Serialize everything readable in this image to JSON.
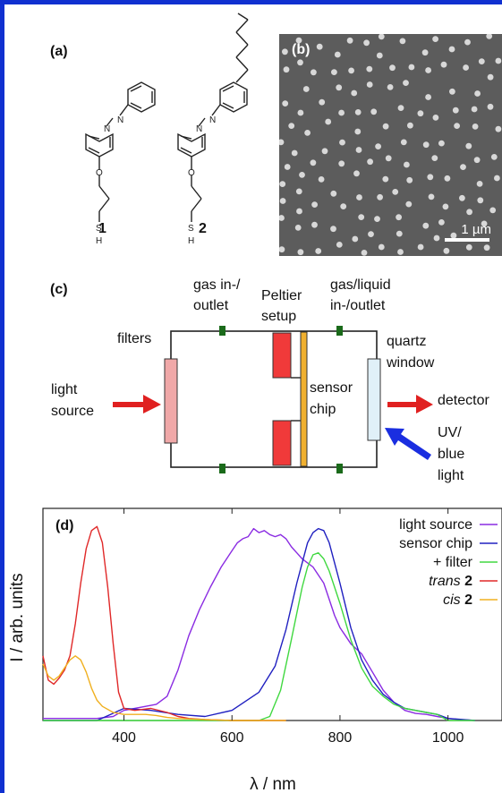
{
  "panel_a": {
    "letter": "(a)",
    "molecules": [
      {
        "number": "1",
        "atoms": {
          "azo_left": "N",
          "azo_right": "N",
          "oxygen": "O",
          "sulfur": "S",
          "hydrogen": "H"
        }
      },
      {
        "number": "2",
        "atoms": {
          "azo_left": "N",
          "azo_right": "N",
          "oxygen": "O",
          "sulfur": "S",
          "hydrogen": "H"
        }
      }
    ]
  },
  "panel_b": {
    "letter": "(b)",
    "scale_label": "1 µm"
  },
  "panel_c": {
    "letter": "(c)",
    "gas_inlet_line1": "gas in-/",
    "gas_inlet_line2": "outlet",
    "peltier_line1": "Peltier",
    "peltier_line2": "setup",
    "gas_liquid_line1": "gas/liquid",
    "gas_liquid_line2": "in-/outlet",
    "filters": "filters",
    "light_source_line1": "light",
    "light_source_line2": "source",
    "sensor_line1": "sensor",
    "sensor_line2": "chip",
    "quartz_line1": "quartz",
    "quartz_line2": "window",
    "detector": "detector",
    "uv_line1": "UV/",
    "uv_line2": "blue",
    "uv_line3": "light",
    "colors": {
      "arrow_red": "#e02020",
      "arrow_blue": "#1a2ee0",
      "peltier": "#f03a3a",
      "sensor_chip": "#f0b030",
      "filter": "#f0a8a8",
      "window": "#e0f0f8",
      "port": "#1a6a1a"
    }
  },
  "panel_d": {
    "letter": "(d)"
  },
  "chart_data": {
    "type": "line",
    "xlabel": "λ / nm",
    "ylabel": "I / arb. units",
    "xlim": [
      250,
      1100
    ],
    "ylim": [
      0,
      1.05
    ],
    "x_ticks": [
      400,
      600,
      800,
      1000
    ],
    "x_tick_labels": [
      "400",
      "600",
      "800",
      "1000"
    ],
    "grid": false,
    "legend_position": "top-right",
    "series": [
      {
        "name": "light source",
        "color": "#8a2be2",
        "x": [
          250,
          300,
          350,
          380,
          400,
          420,
          440,
          460,
          480,
          500,
          520,
          540,
          560,
          580,
          600,
          610,
          620,
          630,
          640,
          650,
          660,
          670,
          680,
          690,
          700,
          710,
          720,
          730,
          740,
          750,
          760,
          770,
          780,
          790,
          800,
          810,
          820,
          840,
          860,
          880,
          900,
          920,
          940,
          960,
          980,
          1000,
          1020,
          1050
        ],
        "y": [
          0.01,
          0.01,
          0.01,
          0.02,
          0.05,
          0.06,
          0.07,
          0.08,
          0.12,
          0.25,
          0.42,
          0.55,
          0.66,
          0.76,
          0.84,
          0.88,
          0.9,
          0.91,
          0.95,
          0.93,
          0.94,
          0.92,
          0.91,
          0.92,
          0.9,
          0.86,
          0.83,
          0.8,
          0.78,
          0.76,
          0.72,
          0.68,
          0.6,
          0.52,
          0.46,
          0.42,
          0.38,
          0.33,
          0.24,
          0.15,
          0.09,
          0.05,
          0.035,
          0.03,
          0.02,
          0.01,
          0.005,
          0.0
        ]
      },
      {
        "name": "sensor chip",
        "color": "#2020c0",
        "x": [
          250,
          300,
          350,
          400,
          450,
          500,
          550,
          600,
          650,
          680,
          700,
          720,
          740,
          750,
          760,
          770,
          780,
          800,
          820,
          840,
          860,
          880,
          900,
          920,
          940,
          960,
          980,
          1000,
          1050
        ],
        "y": [
          0.0,
          0.0,
          0.0,
          0.06,
          0.05,
          0.03,
          0.02,
          0.05,
          0.14,
          0.27,
          0.45,
          0.68,
          0.88,
          0.93,
          0.95,
          0.94,
          0.88,
          0.68,
          0.46,
          0.3,
          0.2,
          0.13,
          0.09,
          0.06,
          0.05,
          0.04,
          0.03,
          0.01,
          0.0
        ]
      },
      {
        "name": "+ filter",
        "color": "#40d840",
        "x": [
          250,
          400,
          600,
          650,
          670,
          690,
          710,
          730,
          740,
          750,
          760,
          770,
          780,
          800,
          820,
          840,
          860,
          880,
          900,
          920,
          940,
          960,
          980,
          1000,
          1050
        ],
        "y": [
          0.0,
          0.0,
          0.0,
          0.0,
          0.02,
          0.15,
          0.4,
          0.66,
          0.76,
          0.82,
          0.83,
          0.8,
          0.74,
          0.58,
          0.4,
          0.26,
          0.17,
          0.12,
          0.08,
          0.06,
          0.05,
          0.04,
          0.03,
          0.0,
          0.0
        ]
      },
      {
        "name": "trans 2",
        "name_plain": "trans",
        "name_bold": "2",
        "color": "#e02828",
        "x": [
          250,
          260,
          270,
          280,
          290,
          300,
          310,
          320,
          330,
          340,
          350,
          360,
          370,
          380,
          390,
          400,
          420,
          450,
          480,
          500,
          520,
          550,
          600,
          650,
          700
        ],
        "y": [
          0.32,
          0.2,
          0.18,
          0.21,
          0.25,
          0.32,
          0.48,
          0.68,
          0.85,
          0.94,
          0.96,
          0.88,
          0.66,
          0.38,
          0.14,
          0.06,
          0.05,
          0.06,
          0.04,
          0.02,
          0.01,
          0.005,
          0.0,
          0.0,
          0.0
        ]
      },
      {
        "name": "cis 2",
        "name_plain": "cis",
        "name_bold": "2",
        "color": "#f0b020",
        "x": [
          250,
          260,
          270,
          280,
          290,
          300,
          310,
          320,
          330,
          340,
          350,
          360,
          380,
          400,
          420,
          440,
          460,
          480,
          500,
          550,
          600,
          700
        ],
        "y": [
          0.28,
          0.22,
          0.2,
          0.22,
          0.26,
          0.3,
          0.32,
          0.3,
          0.24,
          0.16,
          0.1,
          0.07,
          0.04,
          0.03,
          0.03,
          0.03,
          0.025,
          0.015,
          0.01,
          0.005,
          0.0,
          0.0
        ]
      }
    ]
  }
}
